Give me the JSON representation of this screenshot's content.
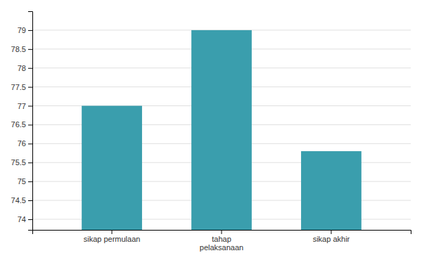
{
  "chart_data": {
    "type": "bar",
    "categories": [
      "sikap permulaan",
      "tahap\npelaksanaan",
      "sikap akhir"
    ],
    "values": [
      77.0,
      79.0,
      75.8
    ],
    "color": "#3A9EAD",
    "ylim": [
      73.72,
      79.5
    ],
    "yticks": [
      74,
      74.5,
      75,
      75.5,
      76,
      76.5,
      77,
      77.5,
      78,
      78.5,
      79
    ],
    "grid": true
  }
}
